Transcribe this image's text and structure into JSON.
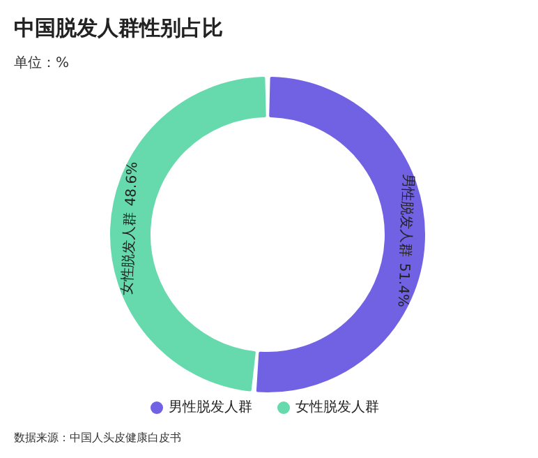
{
  "chart_data": {
    "type": "donut",
    "title": "中国脱发人群性别占比",
    "subtitle": "单位：%",
    "categories": [
      "男性脱发人群",
      "女性脱发人群"
    ],
    "values": [
      51.4,
      48.6
    ],
    "colors": [
      "#7161e3",
      "#66d9ad"
    ],
    "value_labels": [
      "51.4%",
      "48.6%"
    ],
    "legend": "bottom",
    "annotations": [
      "数据来源：中国人头皮健康白皮书"
    ]
  }
}
